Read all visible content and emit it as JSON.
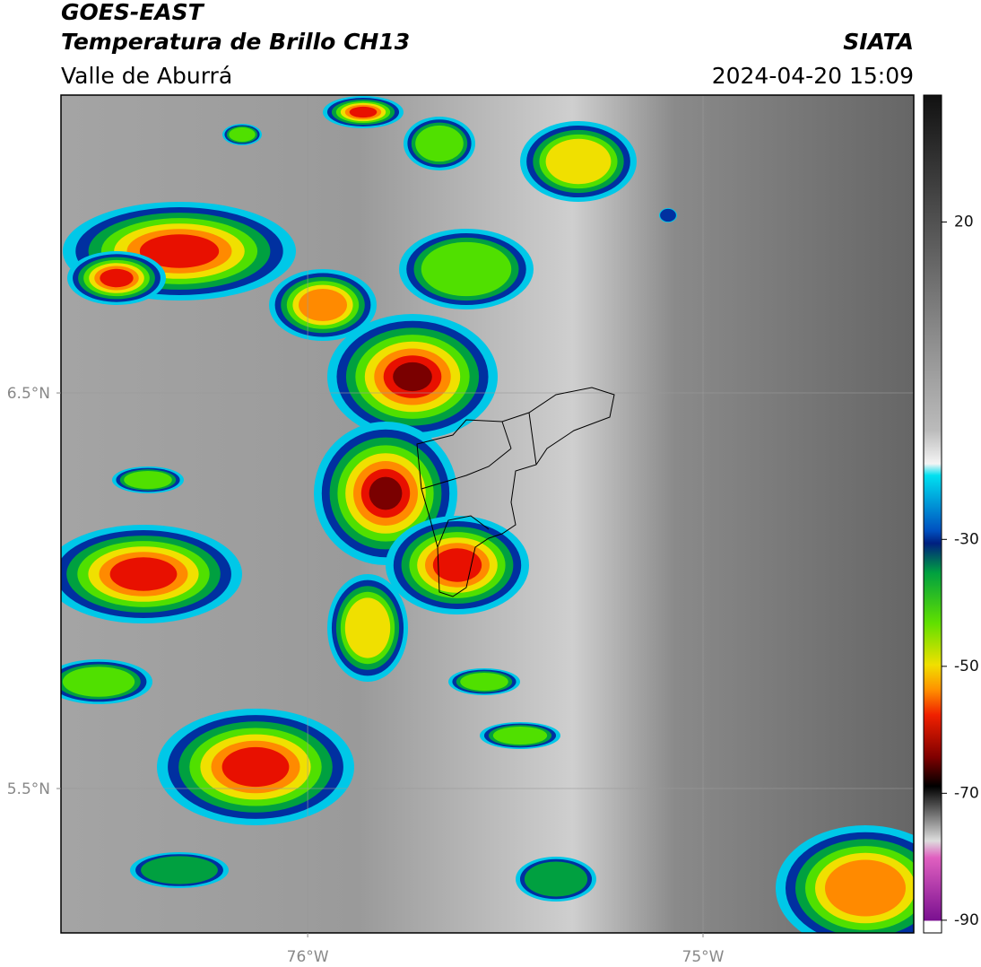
{
  "header": {
    "title": "GOES-EAST",
    "subtitle": "Temperatura de Brillo CH13",
    "region": "Valle de Aburrá",
    "source": "SIATA",
    "timestamp": "2024-04-20 15:09"
  },
  "map": {
    "xlim": [
      -76.624,
      -74.467
    ],
    "ylim": [
      5.135,
      7.253
    ],
    "xticks": [
      {
        "value": -76,
        "label": "76°W"
      },
      {
        "value": -75,
        "label": "75°W"
      }
    ],
    "yticks": [
      {
        "value": 5.5,
        "label": "5.5°N"
      },
      {
        "value": 6.5,
        "label": "6.5°N"
      }
    ],
    "grid": true
  },
  "colorbar": {
    "lim": [
      -92,
      40
    ],
    "ticks": [
      20,
      -30,
      -50,
      -70,
      -90
    ]
  }
}
